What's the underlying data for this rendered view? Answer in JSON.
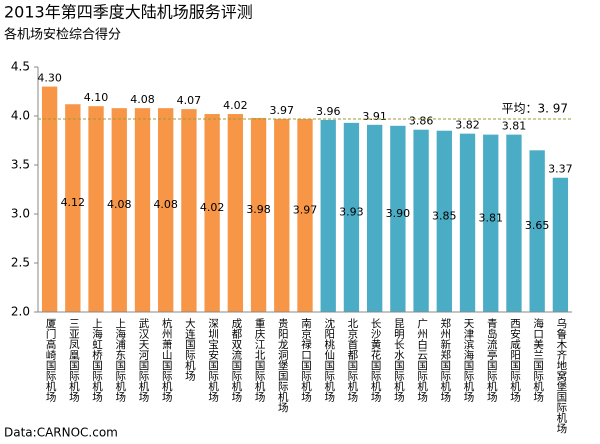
{
  "chart_data": {
    "type": "bar",
    "title": "2013年第四季度大陆机场服务评测",
    "subtitle": "各机场安检综合得分",
    "source": "Data:CARNOC.com",
    "categories": [
      "厦门高崎国际机场",
      "三亚凤凰国际机场",
      "上海虹桥国际机场",
      "上海浦东国际机场",
      "武汉天河国际机场",
      "杭州萧山国际机场",
      "大连国际机场",
      "深圳宝安国际机场",
      "成都双流国际机场",
      "重庆江北国际机场",
      "贵阳龙洞堡国际机场",
      "南京禄口国际机场",
      "沈阳桃仙国际机场",
      "北京首都国际机场",
      "长沙黄花国际机场",
      "昆明长水国际机场",
      "广州白云国际机场",
      "郑州新郑国际机场",
      "天津滨海国际机场",
      "青岛流亭国际机场",
      "西安咸阳国际机场",
      "海口美兰国际机场",
      "乌鲁木齐地窝堡国际机场"
    ],
    "values": [
      4.3,
      4.12,
      4.1,
      4.08,
      4.08,
      4.08,
      4.07,
      4.02,
      4.02,
      3.98,
      3.97,
      3.97,
      3.96,
      3.93,
      3.91,
      3.9,
      3.86,
      3.85,
      3.82,
      3.81,
      3.81,
      3.65,
      3.37
    ],
    "value_labels": [
      "4.30",
      "4.12",
      "4.10",
      "4.08",
      "4.08",
      "4.08",
      "4.07",
      "4.02",
      "4.02",
      "3.98",
      "3.97",
      "3.97",
      "3.96",
      "3.93",
      "3.91",
      "3.90",
      "3.86",
      "3.85",
      "3.82",
      "3.81",
      "3.81",
      "3.65",
      "3.37"
    ],
    "colors": [
      "#f79646",
      "#f79646",
      "#f79646",
      "#f79646",
      "#f79646",
      "#f79646",
      "#f79646",
      "#f79646",
      "#f79646",
      "#f79646",
      "#f79646",
      "#f79646",
      "#4bacc6",
      "#4bacc6",
      "#4bacc6",
      "#4bacc6",
      "#4bacc6",
      "#4bacc6",
      "#4bacc6",
      "#4bacc6",
      "#4bacc6",
      "#4bacc6",
      "#4bacc6"
    ],
    "average": {
      "value": 3.97,
      "label": "平均：3. 97"
    },
    "ylim": [
      2.0,
      4.5
    ],
    "yticks": [
      {
        "value": 2,
        "label": "2.0"
      },
      2.5,
      {
        "value": 3,
        "label": "3.0"
      },
      3.5,
      {
        "value": 4,
        "label": "4.0"
      },
      4.5
    ]
  }
}
